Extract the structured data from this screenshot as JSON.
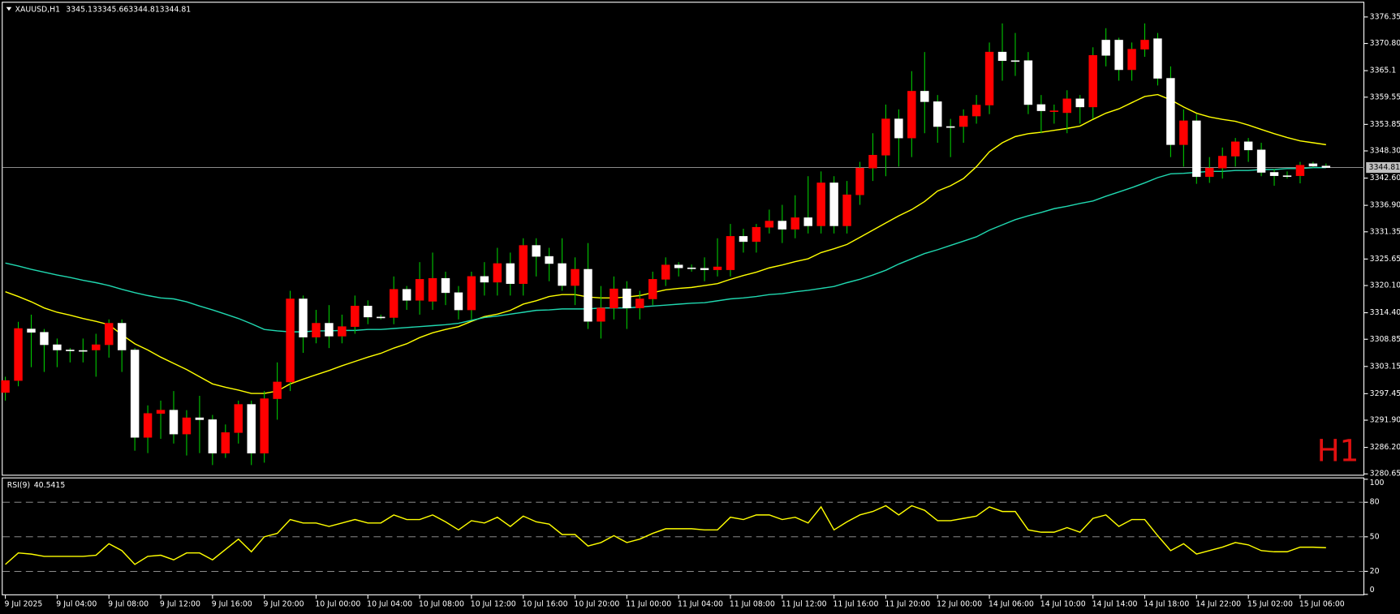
{
  "chart_data": [
    {
      "type": "candlestick",
      "title": "XAUUSD,H1",
      "ohlc_header": [
        3345.13,
        3345.66,
        3344.81,
        3344.81
      ],
      "watermark": "H1",
      "current_price": 3344.81,
      "categories": [
        "9 Jul 2025",
        null,
        null,
        null,
        "9 Jul 04:00",
        null,
        null,
        null,
        "9 Jul 08:00",
        null,
        null,
        null,
        "9 Jul 12:00",
        null,
        null,
        null,
        "9 Jul 16:00",
        null,
        null,
        null,
        "9 Jul 20:00",
        null,
        null,
        null,
        "10 Jul 00:00",
        null,
        null,
        null,
        "10 Jul 04:00",
        null,
        null,
        null,
        "10 Jul 08:00",
        null,
        null,
        null,
        "10 Jul 12:00",
        null,
        null,
        null,
        "10 Jul 16:00",
        null,
        null,
        null,
        "10 Jul 20:00",
        null,
        null,
        null,
        "11 Jul 00:00",
        null,
        null,
        null,
        "11 Jul 04:00",
        null,
        null,
        null,
        "11 Jul 08:00",
        null,
        null,
        null,
        "11 Jul 12:00",
        null,
        null,
        null,
        "11 Jul 16:00",
        null,
        null,
        null,
        "11 Jul 20:00",
        null,
        null,
        null,
        "12 Jul 00:00",
        null,
        null,
        null,
        "14 Jul 06:00",
        null,
        null,
        null,
        "14 Jul 10:00",
        null,
        null,
        null,
        "14 Jul 14:00",
        null,
        null,
        null,
        "14 Jul 18:00",
        null,
        null,
        null,
        "14 Jul 22:00",
        null,
        null,
        null,
        "15 Jul 02:00",
        null,
        null,
        null,
        "15 Jul 06:00",
        null,
        null
      ],
      "open": [
        3297.7,
        3300.2,
        3311,
        3310.3,
        3307.7,
        3306.6,
        3306.5,
        3306.6,
        3307.7,
        3312.2,
        3306.6,
        3288.3,
        3293.3,
        3294,
        3289,
        3292.4,
        3292,
        3285,
        3289.3,
        3295.2,
        3285,
        3296.4,
        3299.9,
        3317.3,
        3309.3,
        3312.2,
        3309.5,
        3311.5,
        3315.8,
        3313.5,
        3313.4,
        3319.3,
        3317,
        3316.8,
        3321.6,
        3318.6,
        3315,
        3322,
        3320.8,
        3324.7,
        3320.5,
        3328.5,
        3326.2,
        3324.7,
        3320.1,
        3323.5,
        3312.6,
        3315.4,
        3319.4,
        3315.4,
        3317.3,
        3321.4,
        3324.4,
        3323.8,
        3323.7,
        3323.4,
        3323.4,
        3330.4,
        3329.3,
        3332.3,
        3333.6,
        3331.9,
        3334.3,
        3332.6,
        3341.6,
        3332.6,
        3339.1,
        3344.7,
        3347.4,
        3355,
        3351,
        3360.8,
        3358.6,
        3353.4,
        3353.4,
        3355.6,
        3357.9,
        3369,
        3367.2,
        3367.2,
        3358,
        3356.7,
        3356.3,
        3359.2,
        3357.5,
        3371.5,
        3371.5,
        3365.3,
        3369.6,
        3371.8,
        3363.5,
        3349.6,
        3354.6,
        3342.9,
        3344.7,
        3347.2,
        3350.2,
        3348.5,
        3343.8,
        3343.1,
        3343.1,
        3345.6,
        3345.13
      ],
      "high": [
        3301,
        3312.5,
        3314,
        3311,
        3309,
        3307,
        3309,
        3310,
        3313,
        3313,
        3307,
        3295,
        3296,
        3298,
        3294,
        3297,
        3293,
        3291,
        3296,
        3296,
        3298,
        3304,
        3319,
        3318,
        3315,
        3316,
        3314,
        3318,
        3317,
        3314,
        3322,
        3320,
        3325,
        3327,
        3323,
        3320,
        3323,
        3325,
        3328,
        3327,
        3330,
        3330,
        3328,
        3330,
        3326,
        3329,
        3320,
        3322,
        3321,
        3319,
        3323,
        3326,
        3325,
        3324.5,
        3326,
        3330,
        3333,
        3332,
        3333,
        3336,
        3337,
        3339,
        3343,
        3344,
        3343,
        3342,
        3346,
        3352,
        3358,
        3357,
        3365,
        3369,
        3360,
        3355,
        3357,
        3360,
        3371,
        3375,
        3373,
        3369,
        3360,
        3358,
        3361,
        3360,
        3370,
        3374,
        3372,
        3371,
        3375,
        3373,
        3366,
        3357,
        3356,
        3347,
        3349,
        3351,
        3351,
        3350,
        3344.5,
        3344,
        3346,
        3346,
        3345.66
      ],
      "low": [
        3296,
        3299,
        3303,
        3302,
        3303,
        3304,
        3304,
        3301,
        3305,
        3302,
        3285.5,
        3285,
        3288,
        3287,
        3284.5,
        3285,
        3282.5,
        3284,
        3287,
        3282.5,
        3283,
        3292,
        3298,
        3306,
        3308,
        3307,
        3308,
        3310,
        3312,
        3313,
        3312,
        3315,
        3314,
        3315,
        3316,
        3313,
        3313,
        3318,
        3318,
        3318,
        3318,
        3322,
        3321,
        3319,
        3316,
        3311,
        3309,
        3313,
        3311,
        3313,
        3316,
        3320,
        3322,
        3323,
        3321,
        3322,
        3322,
        3327,
        3327,
        3331,
        3329,
        3330,
        3331,
        3331,
        3331,
        3331,
        3337,
        3342,
        3343,
        3345,
        3347,
        3352,
        3350,
        3347,
        3350,
        3354,
        3356,
        3363,
        3364,
        3356,
        3352,
        3354,
        3352,
        3354,
        3355,
        3366,
        3363,
        3363,
        3368,
        3362,
        3347,
        3345,
        3341.4,
        3341.6,
        3342.5,
        3345,
        3346,
        3343,
        3341,
        3342.5,
        3341.5,
        3344.8,
        3344.81
      ],
      "close": [
        3300.2,
        3311.1,
        3310.3,
        3307.7,
        3306.6,
        3306.5,
        3306.4,
        3307.7,
        3312.2,
        3306.6,
        3288.3,
        3293.3,
        3294,
        3289,
        3292.4,
        3292,
        3285,
        3289.3,
        3295.2,
        3285,
        3296.4,
        3299.9,
        3317.3,
        3309.3,
        3312.2,
        3309.5,
        3311.5,
        3315.8,
        3313.5,
        3313.4,
        3319.3,
        3317,
        3321.4,
        3321.6,
        3318.6,
        3315,
        3322,
        3320.8,
        3324.7,
        3320.5,
        3328.5,
        3326.2,
        3324.7,
        3320.1,
        3323.5,
        3312.6,
        3315.4,
        3319.4,
        3315.4,
        3317.3,
        3321.4,
        3324.4,
        3323.8,
        3323.7,
        3323.4,
        3324,
        3330.4,
        3329.3,
        3332.3,
        3333.6,
        3331.9,
        3334.3,
        3332.6,
        3341.6,
        3332.6,
        3339.1,
        3344.7,
        3347.4,
        3355,
        3351,
        3360.8,
        3358.6,
        3353.4,
        3353.2,
        3355.6,
        3357.9,
        3369,
        3367.2,
        3367.1,
        3358,
        3356.7,
        3356.7,
        3359.2,
        3357.5,
        3368.3,
        3368.3,
        3365.3,
        3369.6,
        3371.5,
        3363.5,
        3349.6,
        3354.6,
        3342.9,
        3344.7,
        3347.2,
        3350.2,
        3348.5,
        3343.8,
        3343.1,
        3343,
        3345.3,
        3345.1,
        3344.81
      ],
      "up_color": "#ff0000",
      "down_color": "#ffffff",
      "wick_color": "#00c800",
      "overlays": [
        {
          "color": "#ffff00",
          "values": [
            3318.8,
            3317.8,
            3316.7,
            3315.4,
            3314.5,
            3313.9,
            3313.2,
            3312.6,
            3311.9,
            3309.8,
            3307.9,
            3306.6,
            3305.1,
            3303.8,
            3302.5,
            3301.0,
            3299.5,
            3298.8,
            3298.2,
            3297.5,
            3297.5,
            3298.0,
            3299.5,
            3300.5,
            3301.4,
            3302.3,
            3303.3,
            3304.2,
            3305.1,
            3305.9,
            3307.0,
            3307.9,
            3309.2,
            3310.2,
            3310.9,
            3311.5,
            3312.6,
            3313.6,
            3314.1,
            3314.9,
            3316.2,
            3316.9,
            3317.8,
            3318.2,
            3318.2,
            3317.7,
            3317.5,
            3317.5,
            3317.7,
            3318.0,
            3318.6,
            3319.2,
            3319.5,
            3319.7,
            3320.1,
            3320.5,
            3321.4,
            3322.2,
            3322.9,
            3323.8,
            3324.4,
            3325.1,
            3325.7,
            3327.0,
            3327.8,
            3328.7,
            3330.2,
            3331.7,
            3333.2,
            3334.7,
            3336.0,
            3337.7,
            3339.9,
            3341.0,
            3342.5,
            3345.0,
            3348.1,
            3350.0,
            3351.3,
            3351.9,
            3352.2,
            3352.6,
            3353.0,
            3353.5,
            3354.9,
            3356.2,
            3357.1,
            3358.4,
            3359.7,
            3360.1,
            3359.0,
            3357.5,
            3356.2,
            3355.4,
            3354.9,
            3354.5,
            3353.7,
            3352.8,
            3351.9,
            3351.1,
            3350.4,
            3350.0,
            3349.6
          ]
        },
        {
          "color": "#20d8b0",
          "values": [
            3324.8,
            3324.2,
            3323.5,
            3322.9,
            3322.3,
            3321.8,
            3321.2,
            3320.7,
            3320.1,
            3319.3,
            3318.6,
            3318.0,
            3317.5,
            3317.3,
            3316.7,
            3315.8,
            3315.0,
            3314.1,
            3313.2,
            3312.1,
            3310.9,
            3310.6,
            3310.4,
            3310.4,
            3310.6,
            3310.6,
            3310.7,
            3310.7,
            3310.9,
            3310.9,
            3311.1,
            3311.3,
            3311.5,
            3311.7,
            3311.9,
            3312.2,
            3312.8,
            3313.4,
            3313.7,
            3314.1,
            3314.5,
            3314.9,
            3315.0,
            3315.2,
            3315.2,
            3315.2,
            3315.4,
            3315.4,
            3315.4,
            3315.6,
            3315.8,
            3316.0,
            3316.2,
            3316.4,
            3316.5,
            3316.9,
            3317.3,
            3317.5,
            3317.8,
            3318.2,
            3318.4,
            3318.8,
            3319.1,
            3319.5,
            3319.9,
            3320.7,
            3321.4,
            3322.3,
            3323.3,
            3324.6,
            3325.7,
            3326.8,
            3327.6,
            3328.5,
            3329.4,
            3330.3,
            3331.7,
            3332.8,
            3333.9,
            3334.7,
            3335.4,
            3336.2,
            3336.7,
            3337.3,
            3337.8,
            3338.8,
            3339.7,
            3340.6,
            3341.6,
            3342.7,
            3343.5,
            3343.6,
            3343.8,
            3344.0,
            3344.0,
            3344.2,
            3344.2,
            3344.4,
            3344.4,
            3344.6,
            3344.6,
            3344.8,
            3344.8
          ]
        }
      ],
      "ylim": [
        3280.65,
        3376.35
      ],
      "yticks": [
        3376.35,
        {
          "value": 3370.8,
          "label": "3370.80"
        },
        3365.1,
        3359.55,
        3353.85,
        {
          "value": 3348.3,
          "label": "3348.30"
        },
        {
          "value": 3342.6,
          "label": "3342.60"
        },
        {
          "value": 3336.9,
          "label": "3336.90"
        },
        3331.35,
        3325.65,
        {
          "value": 3320.1,
          "label": "3320.10"
        },
        {
          "value": 3314.4,
          "label": "3314.40"
        },
        3308.85,
        3303.15,
        3297.45,
        {
          "value": 3291.9,
          "label": "3291.90"
        },
        {
          "value": 3286.2,
          "label": "3286.20"
        },
        3280.65
      ]
    },
    {
      "type": "line",
      "title": "RSI(9)",
      "current": 40.5415,
      "color": "#ffff00",
      "values": [
        26,
        36,
        35,
        33,
        33,
        33,
        33,
        34,
        44,
        38,
        26,
        33,
        34,
        30,
        36,
        36,
        30,
        39,
        48,
        37,
        50,
        53,
        65,
        62,
        62,
        59,
        62,
        65,
        62,
        62,
        69,
        65,
        65,
        69,
        63,
        56,
        64,
        62,
        67,
        59,
        68,
        63,
        61,
        52,
        52,
        42,
        45,
        51,
        45,
        48,
        53,
        57,
        57,
        57,
        56,
        56,
        67,
        65,
        69,
        69,
        65,
        67,
        62,
        76,
        56,
        63,
        69,
        72,
        77,
        69,
        77,
        73,
        64,
        64,
        66,
        68,
        76,
        72,
        72,
        56,
        54,
        54,
        58,
        54,
        66,
        69,
        59,
        65,
        65,
        51,
        38,
        44,
        35,
        38,
        41,
        45,
        43,
        38,
        37,
        37,
        41,
        41,
        40.5415
      ],
      "ylim": [
        0,
        100
      ],
      "yticks": [
        0,
        20,
        50,
        80,
        100
      ],
      "levels": [
        20,
        50,
        80
      ]
    }
  ]
}
